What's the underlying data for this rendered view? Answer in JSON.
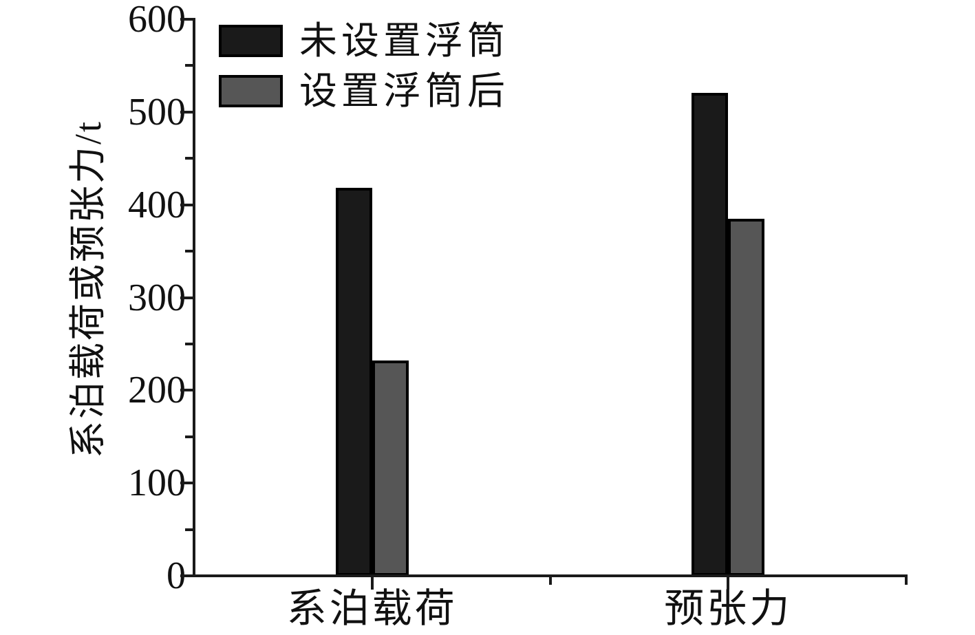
{
  "chart_data": {
    "type": "bar",
    "categories": [
      "系泊载荷",
      "预张力"
    ],
    "series": [
      {
        "name": "未设置浮筒",
        "color": "#1a1a1a",
        "values": [
          418,
          521
        ]
      },
      {
        "name": "设置浮筒后",
        "color": "#565656",
        "values": [
          232,
          385
        ]
      }
    ],
    "title": "",
    "xlabel": "",
    "ylabel": "系泊载荷或预张力/t",
    "ylim": [
      0,
      600
    ],
    "ytick_major": 100,
    "ytick_minor": 50,
    "y_major_labels": [
      "0",
      "100",
      "200",
      "300",
      "400",
      "500",
      "600"
    ],
    "grid": false,
    "legend_position": "top-left",
    "bar_border_color": "#000000",
    "axis_color": "#1a1a1a",
    "background_color": "#ffffff"
  }
}
